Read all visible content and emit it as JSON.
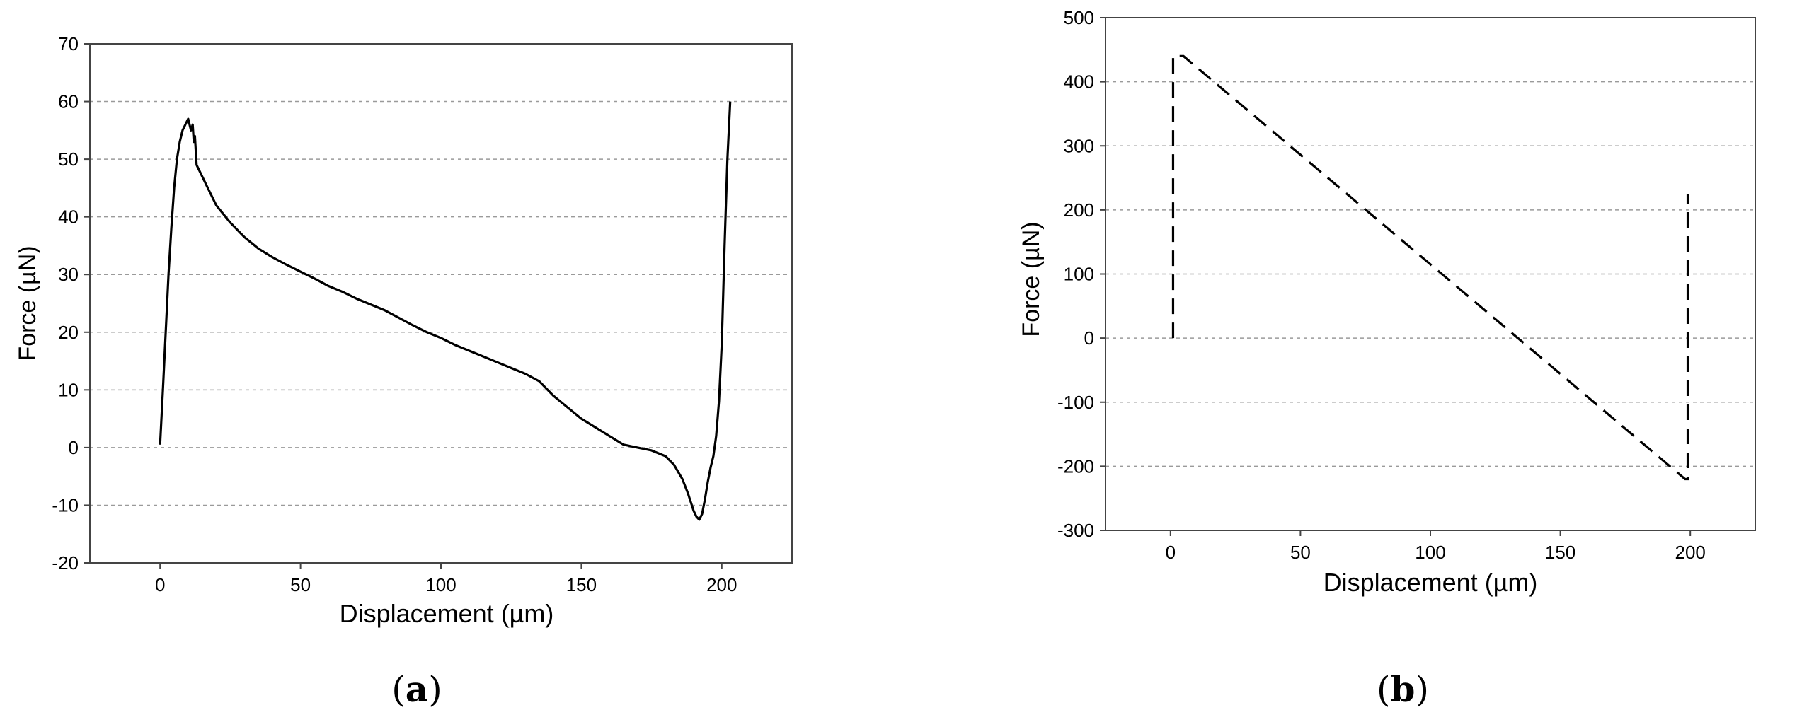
{
  "chart_data": [
    {
      "id": "a",
      "panel_label": {
        "open": "(",
        "letter": "a",
        "close": ")"
      },
      "type": "line",
      "title": "",
      "xlabel": "Displacement (µm)",
      "ylabel": "Force (µN)",
      "xlim": [
        -25,
        225
      ],
      "ylim": [
        -20,
        70
      ],
      "xticks": [
        0,
        50,
        100,
        150,
        200
      ],
      "yticks": [
        -20,
        -10,
        0,
        10,
        20,
        30,
        40,
        50,
        60,
        70
      ],
      "grid": true,
      "line_style": "solid",
      "color": "#000000",
      "series": [
        {
          "x": [
            0,
            1,
            2,
            3,
            4,
            5,
            6,
            7,
            8,
            9,
            10,
            11,
            11.6,
            12,
            12.4,
            13,
            15,
            17,
            20,
            25,
            30,
            35,
            40,
            45,
            50,
            55,
            60,
            65,
            70,
            75,
            80,
            85,
            90,
            95,
            100,
            105,
            110,
            115,
            120,
            125,
            130,
            135,
            140,
            145,
            150,
            155,
            160,
            165,
            170,
            175,
            180,
            183,
            186,
            188,
            190,
            191,
            192,
            193,
            194,
            195,
            196,
            197,
            198,
            199,
            200,
            201,
            202,
            203
          ],
          "y": [
            0.5,
            10,
            20,
            30,
            38,
            45,
            50,
            53,
            55,
            56,
            57,
            55,
            56,
            53,
            54,
            49,
            47,
            45,
            42,
            39,
            36.5,
            34.5,
            33,
            31.7,
            30.5,
            29.3,
            28,
            27,
            25.8,
            24.8,
            23.8,
            22.5,
            21.2,
            20,
            19,
            17.8,
            16.8,
            15.8,
            14.8,
            13.8,
            12.8,
            11.5,
            9,
            7,
            5,
            3.5,
            2,
            0.5,
            0,
            -0.5,
            -1.5,
            -3,
            -5.5,
            -8,
            -11,
            -12,
            -12.5,
            -11.5,
            -9,
            -6,
            -3.5,
            -1.5,
            2,
            8,
            18,
            35,
            50,
            60
          ]
        }
      ]
    },
    {
      "id": "b",
      "panel_label": {
        "open": "(",
        "letter": "b",
        "close": ")"
      },
      "type": "line",
      "title": "",
      "xlabel": "Displacement (µm)",
      "ylabel": "Force (µN)",
      "xlim": [
        -25,
        225
      ],
      "ylim": [
        -300,
        500
      ],
      "xticks": [
        0,
        50,
        100,
        150,
        200
      ],
      "yticks": [
        -300,
        -200,
        -100,
        0,
        100,
        200,
        300,
        400,
        500
      ],
      "grid": true,
      "line_style": "dashed",
      "color": "#000000",
      "series": [
        {
          "x": [
            1,
            1,
            5,
            198,
            199,
            199
          ],
          "y": [
            0,
            440,
            440,
            -220,
            -220,
            225
          ]
        }
      ]
    }
  ]
}
